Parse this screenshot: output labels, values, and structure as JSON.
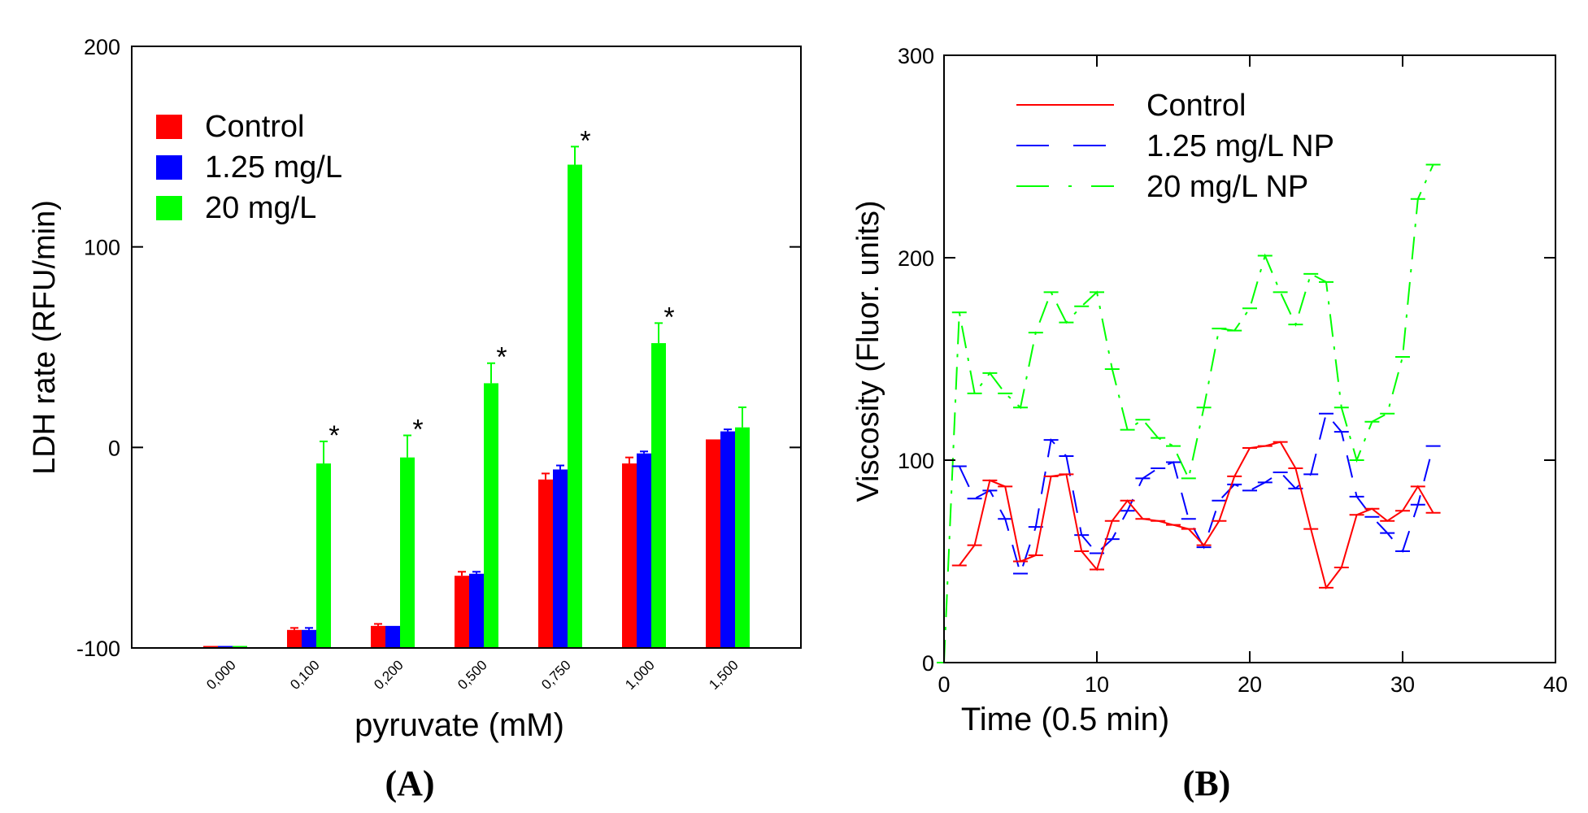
{
  "panel_labels": [
    "(A)",
    "(B)"
  ],
  "chart_data": [
    {
      "type": "bar",
      "title": "",
      "xlabel": "pyruvate (mM)",
      "ylabel": "LDH rate (RFU/min)",
      "ylim": [
        -100,
        200
      ],
      "yticks": [
        "-100",
        "0",
        "100",
        "200"
      ],
      "categories": [
        "0,000",
        "0,100",
        "0,200",
        "0,500",
        "0,750",
        "1,000",
        "1,500"
      ],
      "legend_position": "top-left",
      "significance_marker": "*",
      "series": [
        {
          "name": "Control",
          "color": "#ff0000",
          "values": [
            -99,
            -91,
            -89,
            -64,
            -16,
            -8,
            4
          ],
          "errors": [
            0,
            1,
            1,
            2,
            3,
            3,
            0
          ]
        },
        {
          "name": "1.25 mg/L",
          "color": "#0000ff",
          "values": [
            -99,
            -91,
            -89,
            -63,
            -11,
            -3,
            8
          ],
          "errors": [
            0,
            1,
            0,
            1,
            2,
            1,
            1
          ]
        },
        {
          "name": "20 mg/L",
          "color": "#00ff00",
          "values": [
            -99,
            -8,
            -5,
            32,
            141,
            52,
            10
          ],
          "errors": [
            0,
            11,
            11,
            10,
            9,
            10,
            10
          ]
        }
      ],
      "significant": [
        false,
        true,
        true,
        true,
        true,
        true,
        false
      ]
    },
    {
      "type": "line",
      "title": "",
      "xlabel": "Time (0.5 min)",
      "ylabel": "Viscosity (Fluor. units)",
      "xlim": [
        0,
        40
      ],
      "ylim": [
        0,
        300
      ],
      "xticks": [
        "0",
        "10",
        "20",
        "30",
        "40"
      ],
      "yticks": [
        "0",
        "100",
        "200",
        "300"
      ],
      "legend_position": "top-left",
      "series": [
        {
          "name": "Control",
          "color": "#ff0000",
          "dash": "solid",
          "x": [
            1,
            2,
            3,
            4,
            5,
            6,
            7,
            8,
            9,
            10,
            11,
            12,
            13,
            14,
            15,
            16,
            17,
            18,
            19,
            20,
            21,
            22,
            23,
            24,
            25,
            26,
            27,
            28,
            29,
            30,
            31,
            32
          ],
          "y": [
            48,
            58,
            90,
            87,
            50,
            53,
            92,
            93,
            55,
            46,
            70,
            80,
            71,
            70,
            68,
            66,
            58,
            70,
            92,
            106,
            107,
            109,
            96,
            66,
            37,
            47,
            73,
            76,
            70,
            75,
            87,
            74
          ]
        },
        {
          "name": "1.25 mg/L NP",
          "color": "#0000ff",
          "dash": "long-dash",
          "x": [
            1,
            2,
            3,
            4,
            5,
            6,
            7,
            8,
            9,
            10,
            11,
            12,
            13,
            14,
            15,
            16,
            17,
            18,
            19,
            20,
            21,
            22,
            23,
            24,
            25,
            26,
            27,
            28,
            29,
            30,
            31,
            32
          ],
          "y": [
            97,
            81,
            85,
            71,
            44,
            67,
            110,
            102,
            63,
            54,
            61,
            75,
            91,
            96,
            99,
            71,
            57,
            80,
            88,
            85,
            89,
            94,
            86,
            93,
            123,
            114,
            82,
            72,
            64,
            55,
            78,
            107
          ]
        },
        {
          "name": "20 mg/L NP",
          "color": "#00ff00",
          "dash": "dash-dot",
          "x": [
            0,
            1,
            2,
            3,
            4,
            5,
            6,
            7,
            8,
            9,
            10,
            11,
            12,
            13,
            14,
            15,
            16,
            17,
            18,
            19,
            20,
            21,
            22,
            23,
            24,
            25,
            26,
            27,
            28,
            29,
            30,
            31,
            32
          ],
          "y": [
            0,
            173,
            133,
            143,
            133,
            126,
            163,
            183,
            168,
            176,
            183,
            145,
            115,
            120,
            111,
            107,
            91,
            126,
            165,
            164,
            175,
            201,
            183,
            167,
            192,
            188,
            126,
            100,
            119,
            123,
            151,
            229,
            246
          ]
        }
      ]
    }
  ]
}
